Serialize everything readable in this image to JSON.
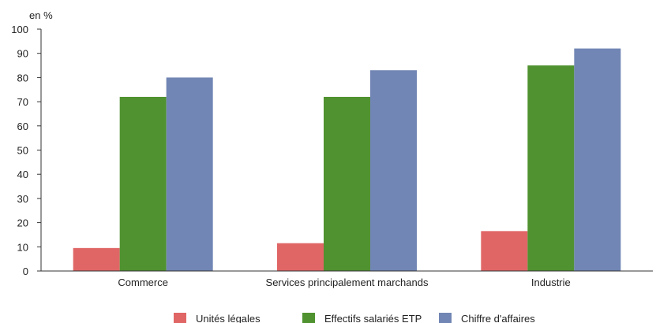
{
  "chart_data": {
    "type": "bar",
    "ylabel": "en %",
    "ylim": [
      0,
      100
    ],
    "yticks": [
      0,
      10,
      20,
      30,
      40,
      50,
      60,
      70,
      80,
      90,
      100
    ],
    "grid": false,
    "legend_position": "bottom",
    "categories": [
      "Commerce",
      "Services principalement marchands",
      "Industrie"
    ],
    "series": [
      {
        "name": "Unités légales",
        "color": "#e06666",
        "values": [
          9.5,
          11.5,
          16.5
        ]
      },
      {
        "name": "Effectifs salariés ETP",
        "color": "#4f922f",
        "values": [
          72,
          72,
          85
        ]
      },
      {
        "name": "Chiffre d'affaires",
        "color": "#7186b4",
        "values": [
          80,
          83,
          92
        ]
      }
    ]
  }
}
